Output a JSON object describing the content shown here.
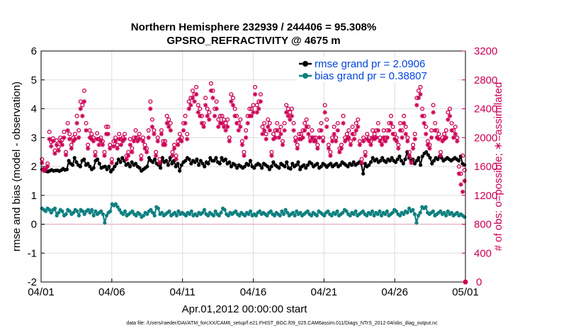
{
  "chart_data": {
    "type": "line",
    "title": "Northern Hemisphere 232939 / 244406 = 95.308%",
    "subtitle": "GPSRO_REFRACTIVITY @ 4675 m",
    "xlabel": "Apr.01,2012 00:00:00 start",
    "ylabel_left": "rmse and bias (model - observation)",
    "ylabel_right": "# of obs: o=possible; ∗=assimilated",
    "ylim_left": [
      -2,
      6
    ],
    "ylim_right": [
      0,
      3200
    ],
    "xlim_days": [
      0,
      30
    ],
    "x_ticks": [
      "04/01",
      "04/06",
      "04/11",
      "04/16",
      "04/21",
      "04/26",
      "05/01"
    ],
    "y_left_ticks": [
      "-2",
      "-1",
      "0",
      "1",
      "2",
      "3",
      "4",
      "5",
      "6"
    ],
    "y_right_ticks": [
      "0",
      "400",
      "800",
      "1200",
      "1600",
      "2000",
      "2400",
      "2800",
      "3200"
    ],
    "footnote": "data file: /Users/raeder/DAI/ATM_forcXX/CAM6_setup/f.e21.FHIST_BGC.f09_025.CAM6assim.011/Diags_NTrS_2012-04/obs_diag_output.nc",
    "colors": {
      "rmse": "#000000",
      "bias": "#0e7f7f",
      "counts": "#cc0055",
      "grid": "#dddddd",
      "zero_line": "#e8b8c8",
      "legend_text": "#0044dd"
    },
    "series": [
      {
        "name": "rmse grand pr = 2.0906",
        "axis": "left",
        "marker": "dot",
        "values": [
          1.9,
          1.88,
          1.84,
          1.82,
          1.85,
          1.88,
          1.85,
          1.86,
          1.87,
          1.84,
          1.87,
          1.92,
          1.88,
          1.9,
          2.2,
          2.1,
          2.05,
          2.3,
          2.15,
          2.05,
          2.0,
          2.2,
          2.25,
          2.05,
          2.1,
          2.0,
          1.9,
          1.95,
          2.2,
          2.25,
          2.1,
          1.95,
          1.98,
          2.0,
          1.9,
          2.0,
          1.82,
          1.9,
          2.0,
          2.1,
          2.25,
          2.15,
          2.3,
          2.2,
          2.05,
          2.1,
          2.0,
          2.15,
          2.05,
          2.1,
          2.0,
          1.95,
          1.85,
          1.9,
          1.95,
          2.0,
          2.3,
          2.2,
          2.15,
          2.25,
          2.1,
          2.05,
          1.95,
          2.3,
          2.15,
          2.2,
          2.05,
          2.3,
          2.1,
          2.2,
          2.0,
          2.1,
          1.85,
          2.05,
          2.15,
          2.2,
          2.3,
          2.25,
          2.1,
          2.2,
          2.15,
          2.25,
          2.05,
          2.2,
          2.1,
          2.0,
          2.15,
          2.1,
          2.3,
          2.2,
          2.2,
          2.3,
          2.15,
          2.1,
          2.3,
          2.2,
          2.25,
          2.1,
          2.15,
          2.0,
          2.1,
          2.05,
          1.95,
          2.05,
          2.0,
          1.95,
          2.0,
          2.1,
          2.05,
          2.2,
          2.0,
          1.95,
          2.05,
          2.1,
          2.05,
          1.95,
          2.1,
          2.05,
          2.0,
          1.9,
          2.0,
          2.15,
          2.05,
          2.0,
          1.95,
          2.1,
          2.05,
          2.0,
          2.15,
          1.95,
          1.92,
          2.1,
          2.0,
          2.05,
          2.15,
          1.9,
          2.0,
          2.05,
          1.95,
          2.05,
          2.15,
          2.1,
          2.0,
          2.05,
          2.1,
          1.95,
          2.0,
          2.1,
          2.05,
          1.98,
          2.05,
          2.1,
          2.0,
          2.05,
          2.1,
          2.0,
          2.05,
          2.15,
          2.1,
          2.05,
          2.0,
          2.1,
          2.05,
          2.15,
          2.05,
          2.1,
          2.15,
          2.1,
          1.75,
          2.1,
          2.0,
          2.05,
          2.15,
          2.3,
          2.2,
          2.25,
          2.15,
          2.2,
          2.3,
          2.2,
          2.15,
          2.25,
          2.2,
          2.3,
          2.2,
          2.15,
          2.25,
          2.35,
          2.2,
          2.1,
          2.25,
          2.5,
          2.3,
          2.2,
          2.25,
          2.1,
          2.2,
          2.3,
          2.05,
          2.35,
          2.45,
          2.5,
          2.4,
          2.3,
          2.1,
          2.2,
          2.3,
          2.25,
          2.35,
          2.3,
          2.2,
          2.25,
          2.3,
          2.25,
          2.2,
          2.25,
          2.3,
          2.25,
          2.2,
          2.35,
          2.1,
          2.05
        ]
      },
      {
        "name": "bias grand pr = 0.38807",
        "axis": "left",
        "marker": "dot",
        "values": [
          0.55,
          0.5,
          0.45,
          0.55,
          0.5,
          0.4,
          0.5,
          0.55,
          0.3,
          0.4,
          0.5,
          0.45,
          0.3,
          0.35,
          0.5,
          0.45,
          0.35,
          0.4,
          0.5,
          0.45,
          0.3,
          0.5,
          0.45,
          0.35,
          0.45,
          0.5,
          0.4,
          0.5,
          0.3,
          0.45,
          0.35,
          0.4,
          0.45,
          0.35,
          0.05,
          0.3,
          0.4,
          0.45,
          0.7,
          0.65,
          0.7,
          0.6,
          0.5,
          0.4,
          0.35,
          0.45,
          0.3,
          0.35,
          0.4,
          0.45,
          0.35,
          0.3,
          0.4,
          0.35,
          0.25,
          0.3,
          0.4,
          0.35,
          0.45,
          0.5,
          0.4,
          0.3,
          0.6,
          0.55,
          0.35,
          0.4,
          0.3,
          0.35,
          0.4,
          0.45,
          0.3,
          0.35,
          0.4,
          0.3,
          0.45,
          0.35,
          0.4,
          0.35,
          0.3,
          0.4,
          0.35,
          0.45,
          0.3,
          0.35,
          0.3,
          0.4,
          0.35,
          0.4,
          0.5,
          0.35,
          0.3,
          0.4,
          0.35,
          0.3,
          0.45,
          0.35,
          0.3,
          0.4,
          0.55,
          0.5,
          0.35,
          0.3,
          0.4,
          0.35,
          0.4,
          0.45,
          0.35,
          0.3,
          0.4,
          0.35,
          0.3,
          0.4,
          0.35,
          0.45,
          0.3,
          0.35,
          0.3,
          0.4,
          0.45,
          0.35,
          0.4,
          0.35,
          0.3,
          0.4,
          0.45,
          0.35,
          0.3,
          0.4,
          0.35,
          0.3,
          0.45,
          0.35,
          0.5,
          0.4,
          0.3,
          0.35,
          0.4,
          0.3,
          0.45,
          0.35,
          0.4,
          0.3,
          0.35,
          0.4,
          0.45,
          0.35,
          0.3,
          0.4,
          0.35,
          0.3,
          0.45,
          0.4,
          0.35,
          0.3,
          0.4,
          0.45,
          0.35,
          0.3,
          0.4,
          0.35,
          0.45,
          0.3,
          0.35,
          0.4,
          0.5,
          0.45,
          0.35,
          0.3,
          0.4,
          0.35,
          0.45,
          0.3,
          0.35,
          0.4,
          0.45,
          0.35,
          0.3,
          0.4,
          0.35,
          0.45,
          0.3,
          0.4,
          0.35,
          0.45,
          0.3,
          0.4,
          0.35,
          0.45,
          0.3,
          0.35,
          0.4,
          0.5,
          0.45,
          0.35,
          0.3,
          0.4,
          0.35,
          0.45,
          0.4,
          0.55,
          0.45,
          0.5,
          0.35,
          0.05,
          0.3,
          0.4,
          0.6,
          0.55,
          0.6,
          0.4,
          0.35,
          0.4,
          0.45,
          0.3,
          0.35,
          0.4,
          0.45,
          0.35,
          0.4,
          0.3,
          0.45,
          0.35,
          0.4,
          0.3,
          0.35,
          0.4,
          0.3,
          0.35,
          0.3,
          0.25
        ]
      },
      {
        "name": "possible obs count",
        "axis": "right",
        "marker": "circle",
        "values": [
          1700,
          1560,
          1580,
          1640,
          2080,
          1940,
          1990,
          1820,
          1960,
          1870,
          2000,
          1970,
          2080,
          1800,
          2200,
          2050,
          1900,
          2000,
          2050,
          2300,
          2100,
          2500,
          2450,
          2650,
          2200,
          1900,
          2100,
          2050,
          2000,
          1800,
          2060,
          1980,
          2000,
          1950,
          1800,
          2150,
          2150,
          1900,
          1700,
          1950,
          2000,
          1900,
          2050,
          1980,
          2000,
          2050,
          1750,
          1800,
          1980,
          1850,
          2000,
          2100,
          2000,
          2050,
          1750,
          2000,
          1900,
          1850,
          2100,
          2500,
          2250,
          2100,
          1800,
          2000,
          1700,
          2100,
          1950,
          1950,
          2300,
          2250,
          2200,
          1800,
          1900,
          1750,
          1950,
          2050,
          2000,
          2200,
          2300,
          2050,
          2500,
          2550,
          2650,
          2600,
          2700,
          2450,
          2400,
          2300,
          2200,
          2550,
          2400,
          2350,
          2750,
          2650,
          2400,
          2500,
          2250,
          2300,
          2300,
          2250,
          2200,
          2250,
          2000,
          2600,
          2550,
          2400,
          2300,
          2200,
          2250,
          1950,
          1800,
          2100,
          2300,
          2400,
          2400,
          2450,
          2700,
          2450,
          2500,
          2600,
          2150,
          2200,
          2050,
          2250,
          2200,
          1800,
          2050,
          2100,
          2200,
          2100,
          2150,
          1950,
          2200,
          2450,
          2400,
          2350,
          2400,
          2200,
          2000,
          1900,
          2050,
          2050,
          2100,
          2200,
          2250,
          2150,
          2000,
          2100,
          2000,
          2000,
          1900,
          2100,
          2200,
          2000,
          2450,
          2250,
          1900,
          1800,
          2000,
          2150,
          2000,
          2200,
          1850,
          1900,
          2300,
          2000,
          2050,
          2100,
          1950,
          2150,
          2050,
          2200,
          2250,
          1950,
          1700,
          2000,
          1800,
          2050,
          2000,
          1950,
          2100,
          2050,
          2100,
          2200,
          2000,
          1950,
          2100,
          2000,
          2100,
          2200,
          2300,
          2150,
          2050,
          2000,
          1900,
          2200,
          2100,
          2300,
          2150,
          2000,
          1800,
          1700,
          1900,
          2050,
          2550,
          2650,
          2700,
          2400,
          2300,
          2150,
          1950,
          1900,
          2100,
          2450,
          2200,
          2100,
          2050,
          1800,
          2000,
          2050,
          2100,
          2350,
          2400,
          2200,
          2100,
          2150,
          2000,
          1600,
          1500,
          1750,
          1550
        ]
      },
      {
        "name": "assimilated obs count",
        "axis": "right",
        "marker": "star",
        "values": [
          1650,
          1540,
          1560,
          1600,
          1980,
          1880,
          1950,
          1780,
          1900,
          1820,
          1940,
          1900,
          2000,
          1760,
          2100,
          1980,
          1850,
          1950,
          1980,
          2200,
          2000,
          2400,
          2300,
          2500,
          2100,
          1850,
          2000,
          1980,
          1950,
          1750,
          1980,
          1900,
          1950,
          1900,
          1750,
          2050,
          2050,
          1850,
          1650,
          1880,
          1950,
          1850,
          1980,
          1900,
          1950,
          1980,
          1700,
          1750,
          1900,
          1800,
          1950,
          2000,
          1950,
          1980,
          1700,
          1950,
          1850,
          1800,
          2000,
          2400,
          2150,
          2050,
          1750,
          1950,
          1650,
          2050,
          1900,
          1900,
          2200,
          2150,
          2100,
          1750,
          1850,
          1700,
          1900,
          1980,
          1950,
          2100,
          2200,
          1980,
          2400,
          2450,
          2550,
          2500,
          2600,
          2350,
          2300,
          2200,
          2150,
          2450,
          2300,
          2250,
          2650,
          2550,
          2300,
          2400,
          2150,
          2200,
          2200,
          2150,
          2100,
          2150,
          1950,
          2500,
          2450,
          2300,
          2200,
          2100,
          2150,
          1900,
          1750,
          2000,
          2200,
          2300,
          2300,
          2350,
          2600,
          2350,
          2400,
          2500,
          2050,
          2100,
          1980,
          2150,
          2100,
          1750,
          1980,
          2000,
          2100,
          2000,
          2050,
          1900,
          2100,
          2350,
          2300,
          2250,
          2300,
          2100,
          1950,
          1850,
          1980,
          1980,
          2000,
          2100,
          2150,
          2050,
          1950,
          2000,
          1950,
          1950,
          1850,
          2000,
          2100,
          1950,
          2350,
          2150,
          1850,
          1750,
          1950,
          2050,
          1950,
          2100,
          1800,
          1850,
          2200,
          1950,
          1980,
          2000,
          1900,
          2050,
          1980,
          2100,
          2150,
          1900,
          1650,
          1950,
          1750,
          1980,
          1950,
          1900,
          2000,
          1980,
          2000,
          2100,
          1950,
          1900,
          2000,
          1950,
          2000,
          2100,
          2200,
          2050,
          1980,
          1950,
          1850,
          2100,
          2000,
          2200,
          2050,
          1950,
          1750,
          1650,
          1850,
          1980,
          2450,
          2550,
          2600,
          2300,
          2200,
          2050,
          1900,
          1850,
          2000,
          2350,
          2100,
          2000,
          1980,
          1750,
          1950,
          1980,
          2000,
          2250,
          2300,
          2100,
          2000,
          2050,
          1950,
          1500,
          1350,
          1250,
          1400
        ]
      }
    ],
    "annotations": [
      {
        "text": "0",
        "axis": "right",
        "note": "zero-count marker at end of record"
      }
    ]
  }
}
